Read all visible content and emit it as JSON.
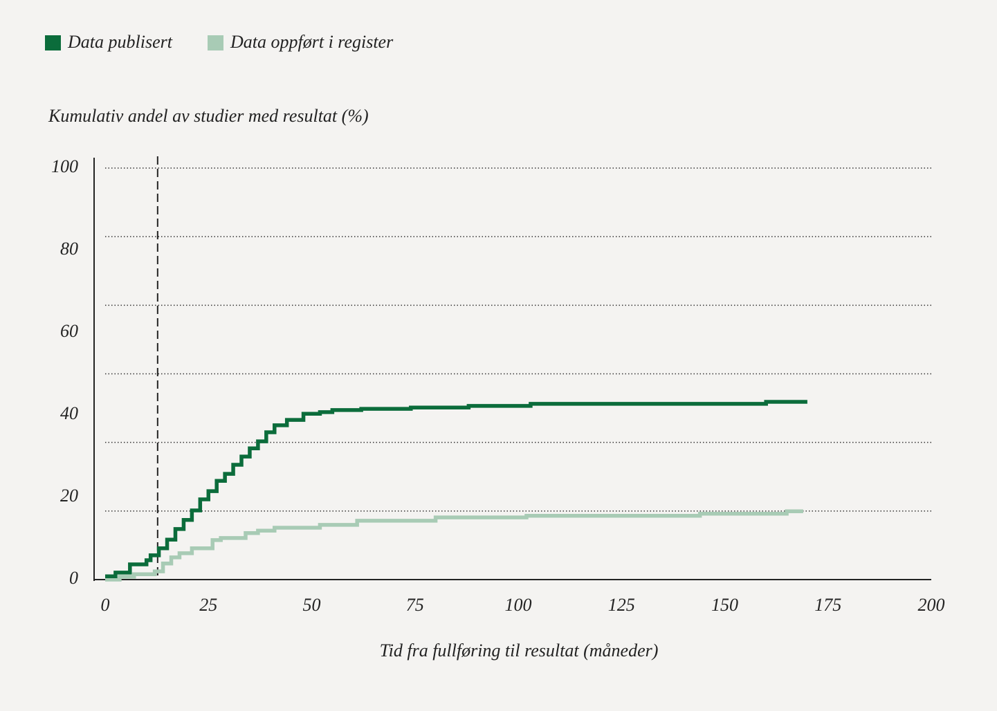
{
  "chart_data": {
    "type": "step",
    "y_axis_label": "Kumulativ andel av studier med resultat (%)",
    "x_axis_label": "Tid fra fullføring til  resultat (måneder)",
    "xlim": [
      0,
      200
    ],
    "xticks": [
      0,
      25,
      50,
      75,
      100,
      125,
      150,
      175,
      200
    ],
    "ylim": [
      0,
      100
    ],
    "yticks": [
      0,
      20,
      40,
      60,
      80,
      100
    ],
    "grid_values": [
      0,
      16.67,
      33.33,
      50,
      66.67,
      83.33,
      100
    ],
    "reference_line_x": 12.7,
    "legend": "top-left",
    "series": [
      {
        "name": "Data publisert",
        "color": "#0b6c3b",
        "x": [
          0,
          2.5,
          6,
          10,
          11,
          13,
          15,
          17,
          19,
          21,
          23,
          25,
          27,
          29,
          31,
          33,
          35,
          37,
          39,
          41,
          44,
          48,
          52,
          55,
          62,
          74,
          88,
          103,
          160,
          170
        ],
        "values": [
          0.8,
          1.7,
          3.7,
          4.7,
          5.9,
          7.6,
          9.7,
          12.3,
          14.5,
          16.8,
          19.5,
          21.5,
          24,
          25.7,
          27.9,
          29.9,
          31.9,
          33.6,
          35.8,
          37.5,
          38.8,
          40.3,
          40.7,
          41.2,
          41.5,
          41.8,
          42.2,
          42.7,
          43.2,
          43.2
        ]
      },
      {
        "name": "Data oppført i register",
        "color": "#a8cbb5",
        "x": [
          0,
          3.5,
          7,
          12,
          14,
          16,
          18,
          21,
          26,
          28,
          34,
          37,
          41,
          52,
          61,
          80,
          102,
          144,
          165,
          169
        ],
        "values": [
          0,
          0.7,
          1.3,
          2,
          3.9,
          5.4,
          6.4,
          7.6,
          9.6,
          10.1,
          11.3,
          11.9,
          12.6,
          13.3,
          14.3,
          15.1,
          15.5,
          16,
          16.6,
          16.6
        ]
      }
    ]
  }
}
